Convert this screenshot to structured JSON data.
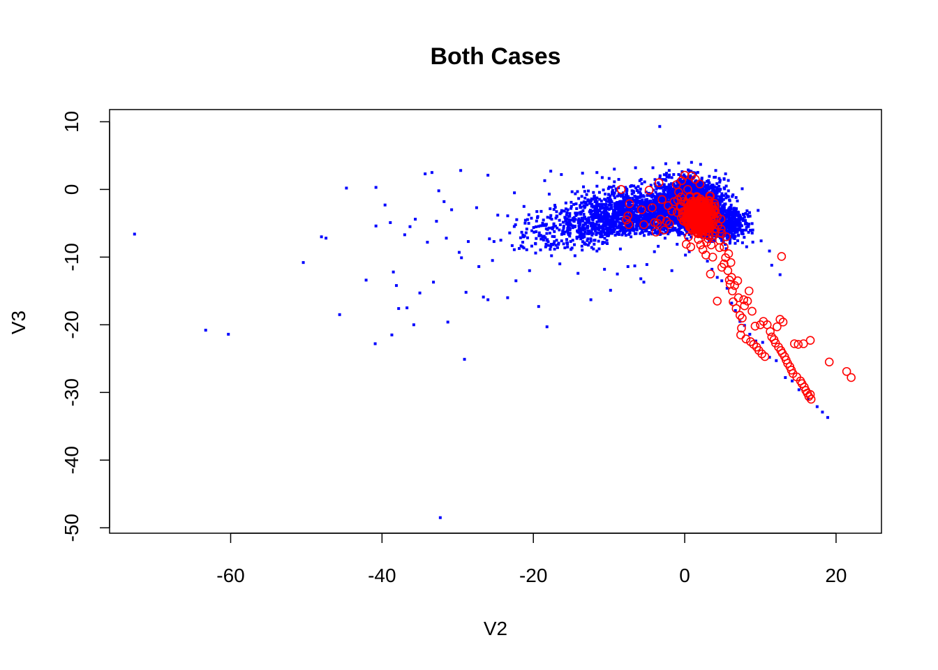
{
  "chart_data": {
    "type": "scatter",
    "title": "Both Cases",
    "xlabel": "V2",
    "ylabel": "V3",
    "xlim": [
      -76,
      26
    ],
    "ylim": [
      -50.8,
      11.8
    ],
    "xticks": [
      -60,
      -40,
      -20,
      0,
      20
    ],
    "yticks": [
      -50,
      -40,
      -30,
      -20,
      -10,
      0,
      10
    ],
    "grid": false,
    "legend": "none",
    "series": [
      {
        "color": "#0000ff",
        "marker": "small filled square",
        "points": [
          [
            -72.7,
            -6.6
          ],
          [
            -63.3,
            -20.8
          ],
          [
            -60.3,
            -21.4
          ],
          [
            -50.4,
            -10.8
          ],
          [
            -48.0,
            -7.0
          ],
          [
            -47.4,
            -7.2
          ],
          [
            -45.6,
            -18.5
          ],
          [
            -44.7,
            0.2
          ],
          [
            -42.1,
            -13.4
          ],
          [
            -40.8,
            0.3
          ],
          [
            -40.9,
            -22.8
          ],
          [
            -40.8,
            -5.4
          ],
          [
            -39.6,
            -2.3
          ],
          [
            -38.9,
            -4.9
          ],
          [
            -38.5,
            -12.2
          ],
          [
            -38.1,
            -14.2
          ],
          [
            -38.7,
            -21.5
          ],
          [
            -37.8,
            -17.6
          ],
          [
            -37.0,
            -6.7
          ],
          [
            -36.7,
            -17.5
          ],
          [
            -36.3,
            -5.5
          ],
          [
            -35.8,
            -20.0
          ],
          [
            -35.6,
            -4.4
          ],
          [
            -35.0,
            -15.3
          ],
          [
            -34.3,
            2.3
          ],
          [
            -34.0,
            -7.8
          ],
          [
            -33.4,
            2.5
          ],
          [
            -33.2,
            -13.7
          ],
          [
            -32.5,
            -0.2
          ],
          [
            -32.8,
            -4.7
          ],
          [
            -32.3,
            -48.5
          ],
          [
            -31.8,
            -1.8
          ],
          [
            -31.5,
            -7.2
          ],
          [
            -31.3,
            -19.6
          ],
          [
            -30.8,
            -3.0
          ],
          [
            -29.8,
            -9.3
          ],
          [
            -29.6,
            2.8
          ],
          [
            -29.5,
            -10.1
          ],
          [
            -29.1,
            -25.1
          ],
          [
            -28.9,
            -15.2
          ],
          [
            -28.6,
            -7.7
          ],
          [
            -27.5,
            -2.7
          ],
          [
            -27.2,
            -11.4
          ],
          [
            -26.6,
            -15.9
          ],
          [
            -26.0,
            -16.3
          ],
          [
            -25.8,
            -7.3
          ],
          [
            -26.0,
            2.1
          ],
          [
            -25.4,
            -10.5
          ],
          [
            -25.2,
            -7.7
          ],
          [
            -24.7,
            -3.8
          ],
          [
            -24.3,
            -7.5
          ],
          [
            -23.4,
            -16.0
          ],
          [
            -22.8,
            -8.3
          ],
          [
            -22.3,
            -13.5
          ],
          [
            -22.5,
            -0.5
          ],
          [
            -21.4,
            -7.8
          ],
          [
            -20.5,
            -12.0
          ],
          [
            -20.2,
            -6.1
          ],
          [
            -19.7,
            -9.4
          ],
          [
            -19.3,
            -17.3
          ],
          [
            -18.2,
            -20.3
          ],
          [
            -18.5,
            1.3
          ],
          [
            -17.6,
            -9.8
          ],
          [
            -17.3,
            -5.2
          ],
          [
            -16.8,
            -8.6
          ],
          [
            -16.5,
            -11.0
          ],
          [
            -15.7,
            -2.0
          ],
          [
            -15.2,
            -6.9
          ],
          [
            -14.5,
            -9.8
          ],
          [
            -14.1,
            -12.4
          ],
          [
            -13.2,
            -4.1
          ],
          [
            -12.8,
            -7.3
          ],
          [
            -12.4,
            -16.3
          ],
          [
            -11.6,
            -9.1
          ],
          [
            -11.0,
            -5.6
          ],
          [
            -10.6,
            -11.8
          ],
          [
            -10.4,
            -2.2
          ],
          [
            -9.8,
            -14.9
          ],
          [
            -9.6,
            -6.5
          ],
          [
            -8.9,
            -12.5
          ],
          [
            -8.5,
            -8.8
          ],
          [
            -7.9,
            -3.0
          ],
          [
            -7.5,
            -11.4
          ],
          [
            -7.1,
            -7.0
          ],
          [
            -6.6,
            -11.3
          ],
          [
            -6.2,
            -4.6
          ],
          [
            -5.8,
            -13.2
          ],
          [
            -5.4,
            -13.7
          ],
          [
            -5.0,
            -11.1
          ],
          [
            -4.5,
            -4.9
          ],
          [
            -4.0,
            -9.2
          ],
          [
            -3.5,
            -8.4
          ],
          [
            -3.3,
            9.3
          ],
          [
            -2.6,
            -7.2
          ],
          [
            -2.1,
            -6.0
          ],
          [
            -1.7,
            -12.0
          ],
          [
            -1.0,
            -8.1
          ],
          [
            -0.5,
            -6.4
          ],
          [
            0.1,
            -9.7
          ],
          [
            0.6,
            -9.2
          ],
          [
            1.8,
            -5.3
          ],
          [
            3.0,
            -10.6
          ],
          [
            3.6,
            -11.8
          ],
          [
            4.3,
            -13.0
          ],
          [
            4.9,
            -13.5
          ],
          [
            5.6,
            -14.6
          ],
          [
            6.2,
            -16.8
          ],
          [
            6.7,
            -17.9
          ],
          [
            7.3,
            -19.5
          ],
          [
            7.9,
            -20.1
          ],
          [
            8.6,
            -21.4
          ],
          [
            9.4,
            -22.4
          ],
          [
            10.3,
            -22.6
          ],
          [
            11.2,
            -24.8
          ],
          [
            12.1,
            -25.3
          ],
          [
            13.3,
            -27.8
          ],
          [
            14.2,
            -28.3
          ],
          [
            15.1,
            -29.6
          ],
          [
            16.3,
            -31.0
          ],
          [
            17.5,
            -32.1
          ],
          [
            18.2,
            -32.9
          ],
          [
            18.9,
            -33.7
          ],
          [
            8.4,
            -4.0
          ],
          [
            9.0,
            -6.0
          ],
          [
            10.1,
            -7.6
          ],
          [
            11.2,
            -9.1
          ],
          [
            12.6,
            -12.6
          ],
          [
            11.5,
            -11.2
          ],
          [
            9.7,
            -3.1
          ],
          [
            7.6,
            0.1
          ],
          [
            5.4,
            2.3
          ],
          [
            4.1,
            2.8
          ],
          [
            2.1,
            3.7
          ],
          [
            0.9,
            4.0
          ],
          [
            -0.8,
            3.9
          ],
          [
            -2.5,
            3.8
          ],
          [
            -4.2,
            3.2
          ],
          [
            -6.5,
            3.2
          ],
          [
            -9.3,
            3.0
          ],
          [
            -11.6,
            2.5
          ],
          [
            -13.5,
            2.4
          ],
          [
            -16.3,
            2.2
          ],
          [
            -17.7,
            2.7
          ]
        ],
        "cloud": [
          {
            "center": [
              -5,
              -3.5
            ],
            "spread": [
              8,
              3.5
            ],
            "count": 1300
          },
          {
            "center": [
              1,
              -2
            ],
            "spread": [
              4,
              3.2
            ],
            "count": 1800
          },
          {
            "center": [
              -12,
              -5
            ],
            "spread": [
              5,
              3.5
            ],
            "count": 350
          },
          {
            "center": [
              5,
              -5
            ],
            "spread": [
              3,
              2.5
            ],
            "count": 600
          },
          {
            "center": [
              -18,
              -7
            ],
            "spread": [
              5,
              4
            ],
            "count": 110
          }
        ]
      },
      {
        "color": "#ff0000",
        "marker": "open circle",
        "points": [
          [
            -8.4,
            0.0
          ],
          [
            -7.3,
            -2.1
          ],
          [
            -7.5,
            -3.9
          ],
          [
            -7.7,
            -4.5
          ],
          [
            -7.4,
            -5.2
          ],
          [
            -5.7,
            -3.0
          ],
          [
            -5.4,
            -5.2
          ],
          [
            -4.7,
            -0.1
          ],
          [
            -4.3,
            -2.7
          ],
          [
            -4.0,
            -4.9
          ],
          [
            -3.8,
            -6.3
          ],
          [
            -3.6,
            -5.0
          ],
          [
            -3.4,
            1.0
          ],
          [
            -3.2,
            -4.4
          ],
          [
            -2.7,
            -6.0
          ],
          [
            -2.4,
            -4.7
          ],
          [
            -2.0,
            -5.1
          ],
          [
            -1.7,
            -3.2
          ],
          [
            -1.4,
            -1.8
          ],
          [
            -1.1,
            0.7
          ],
          [
            -0.8,
            -0.4
          ],
          [
            -0.4,
            1.3
          ],
          [
            0.0,
            2.1
          ],
          [
            0.2,
            -8.1
          ],
          [
            0.5,
            -7.0
          ],
          [
            0.9,
            2.0
          ],
          [
            1.2,
            -5.0
          ],
          [
            1.5,
            -6.2
          ],
          [
            1.8,
            -7.4
          ],
          [
            2.1,
            -8.2
          ],
          [
            2.4,
            -8.9
          ],
          [
            2.8,
            -9.7
          ],
          [
            3.1,
            -7.3
          ],
          [
            3.4,
            -12.5
          ],
          [
            3.7,
            -10.0
          ],
          [
            4.0,
            -6.3
          ],
          [
            4.3,
            -16.5
          ],
          [
            4.6,
            -8.6
          ],
          [
            4.9,
            -11.5
          ],
          [
            5.2,
            -11.0
          ],
          [
            5.4,
            -10.1
          ],
          [
            5.7,
            -12.0
          ],
          [
            5.9,
            -13.4
          ],
          [
            6.0,
            -14.0
          ],
          [
            6.2,
            -13.0
          ],
          [
            6.3,
            -15.0
          ],
          [
            6.4,
            -16.6
          ],
          [
            6.6,
            -14.2
          ],
          [
            6.8,
            -17.6
          ],
          [
            7.0,
            -13.5
          ],
          [
            7.1,
            -16.0
          ],
          [
            7.3,
            -18.6
          ],
          [
            7.4,
            -21.5
          ],
          [
            7.5,
            -20.5
          ],
          [
            7.6,
            -19.0
          ],
          [
            7.8,
            -16.3
          ],
          [
            7.9,
            -17.2
          ],
          [
            8.1,
            -22.1
          ],
          [
            8.3,
            -16.5
          ],
          [
            8.5,
            -15.0
          ],
          [
            8.7,
            -22.5
          ],
          [
            8.9,
            -18.0
          ],
          [
            9.1,
            -22.9
          ],
          [
            9.3,
            -20.2
          ],
          [
            9.5,
            -23.3
          ],
          [
            9.8,
            -23.8
          ],
          [
            10.0,
            -20.0
          ],
          [
            10.2,
            -24.3
          ],
          [
            10.4,
            -19.5
          ],
          [
            10.6,
            -24.7
          ],
          [
            10.9,
            -20.0
          ],
          [
            11.3,
            -21.0
          ],
          [
            11.5,
            -21.8
          ],
          [
            11.8,
            -22.2
          ],
          [
            12.0,
            -22.7
          ],
          [
            12.2,
            -20.3
          ],
          [
            12.4,
            -23.3
          ],
          [
            12.6,
            -19.2
          ],
          [
            12.7,
            -23.8
          ],
          [
            12.8,
            -9.9
          ],
          [
            12.9,
            -24.2
          ],
          [
            13.0,
            -19.6
          ],
          [
            13.2,
            -24.7
          ],
          [
            13.4,
            -25.2
          ],
          [
            13.6,
            -25.7
          ],
          [
            13.9,
            -26.2
          ],
          [
            14.1,
            -26.7
          ],
          [
            14.3,
            -27.2
          ],
          [
            14.5,
            -22.8
          ],
          [
            14.8,
            -27.7
          ],
          [
            15.0,
            -22.9
          ],
          [
            15.3,
            -28.3
          ],
          [
            15.5,
            -28.7
          ],
          [
            15.7,
            -22.8
          ],
          [
            15.8,
            -29.2
          ],
          [
            16.0,
            -29.7
          ],
          [
            16.2,
            -30.1
          ],
          [
            16.4,
            -30.6
          ],
          [
            16.6,
            -22.3
          ],
          [
            16.6,
            -30.3
          ],
          [
            16.7,
            -31.0
          ],
          [
            19.1,
            -25.5
          ],
          [
            21.4,
            -26.9
          ],
          [
            22.0,
            -27.8
          ],
          [
            0.4,
            0.0
          ],
          [
            0.7,
            -1.0
          ],
          [
            1.0,
            -2.5
          ],
          [
            1.3,
            -3.0
          ],
          [
            1.6,
            -1.2
          ],
          [
            1.9,
            -3.6
          ],
          [
            2.2,
            -4.2
          ],
          [
            2.5,
            -2.0
          ],
          [
            2.8,
            -5.5
          ],
          [
            3.1,
            -4.5
          ],
          [
            3.4,
            -3.3
          ],
          [
            3.7,
            -6.8
          ],
          [
            4.0,
            -5.8
          ],
          [
            4.3,
            -4.0
          ],
          [
            4.6,
            -7.5
          ],
          [
            4.9,
            -6.5
          ],
          [
            5.2,
            -8.5
          ],
          [
            5.5,
            -7.0
          ],
          [
            5.8,
            -9.5
          ],
          [
            6.1,
            -10.8
          ],
          [
            0.6,
            -3.8
          ],
          [
            1.1,
            -4.9
          ],
          [
            1.7,
            -6.0
          ],
          [
            2.3,
            -6.6
          ],
          [
            2.9,
            -7.8
          ],
          [
            3.5,
            -8.2
          ],
          [
            -0.2,
            -1.8
          ],
          [
            -0.6,
            -2.6
          ],
          [
            -1.0,
            -3.4
          ],
          [
            0.2,
            -4.5
          ],
          [
            2.0,
            0.8
          ],
          [
            1.4,
            1.5
          ],
          [
            -2.2,
            -2.4
          ],
          [
            -3.0,
            -1.5
          ],
          [
            0.8,
            -8.5
          ]
        ],
        "cloud": [
          {
            "center": [
              1.8,
              -4
            ],
            "spread": [
              2,
              2.6
            ],
            "count": 300
          }
        ]
      }
    ]
  }
}
